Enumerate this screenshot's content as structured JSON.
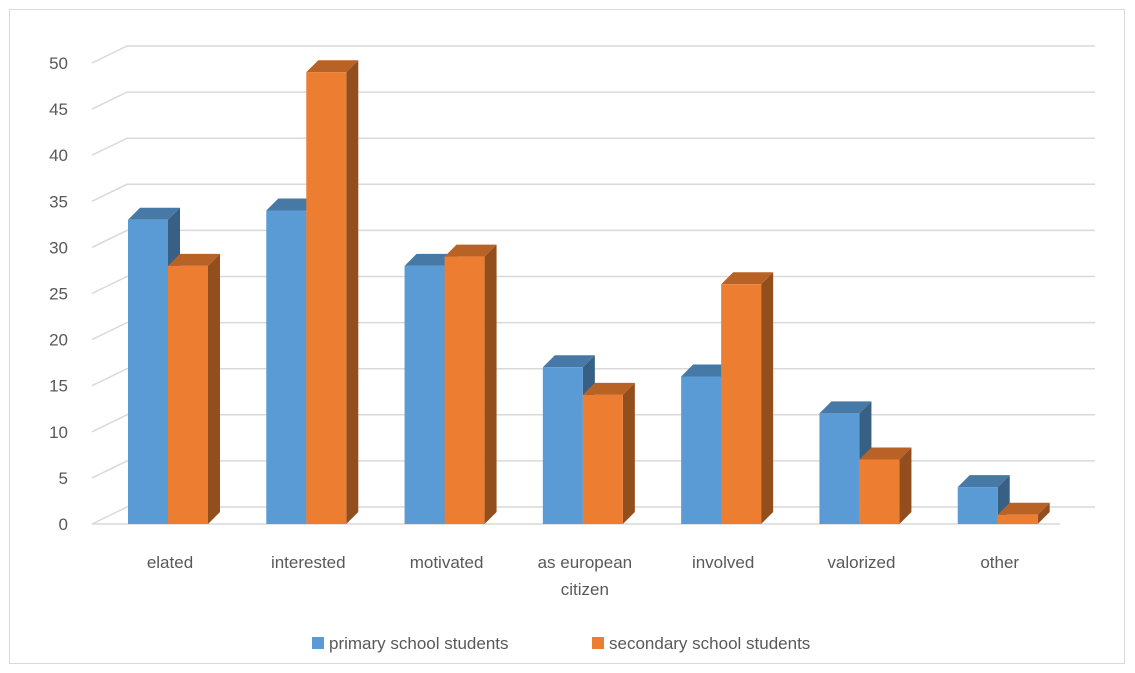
{
  "chart_data": {
    "type": "bar",
    "style": "3d-clustered-column",
    "categories": [
      [
        "elated"
      ],
      [
        "interested"
      ],
      [
        "motivated"
      ],
      [
        "as european",
        "citizen"
      ],
      [
        "involved"
      ],
      [
        "valorized"
      ],
      [
        "other"
      ]
    ],
    "series": [
      {
        "name": "primary school students",
        "color": "#5B9BD5",
        "values": [
          33,
          34,
          28,
          17,
          16,
          12,
          4
        ]
      },
      {
        "name": "secondary school students",
        "color": "#ED7D31",
        "values": [
          28,
          49,
          29,
          14,
          26,
          7,
          1
        ]
      }
    ],
    "y_ticks": [
      "0",
      "5",
      "10",
      "15",
      "20",
      "25",
      "30",
      "35",
      "40",
      "45",
      "50"
    ],
    "ylim": [
      0,
      50
    ],
    "grid": true,
    "legend_position": "bottom"
  }
}
